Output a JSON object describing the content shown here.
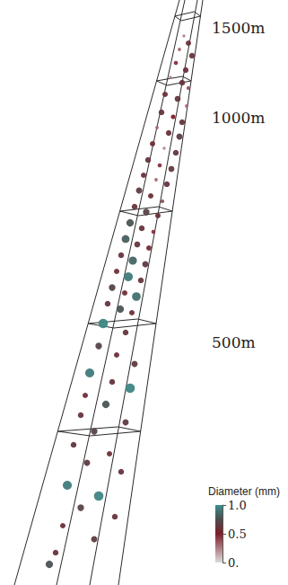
{
  "chart_data": {
    "type": "scatter",
    "xlim": [
      0,
      321
    ],
    "ylim": [
      0,
      651
    ],
    "tick_labels": false,
    "grid": false,
    "annotations": [
      "1500m",
      "1000m",
      "500m"
    ],
    "x": [
      205,
      210,
      200,
      214,
      196,
      207,
      190,
      203,
      210,
      184,
      198,
      208,
      180,
      193,
      203,
      175,
      188,
      200,
      170,
      183,
      196,
      165,
      178,
      191,
      160,
      174,
      186,
      155,
      168,
      181,
      150,
      163,
      176,
      145,
      158,
      171,
      140,
      153,
      166,
      135,
      148,
      162,
      130,
      143,
      157,
      125,
      139,
      152,
      120,
      134,
      147,
      115,
      140,
      110,
      130,
      150,
      100,
      125,
      145,
      95,
      118,
      90,
      140,
      105,
      82,
      122,
      97,
      135,
      75,
      110,
      90,
      128,
      70,
      105,
      62,
      55
    ],
    "y": [
      611,
      603,
      596,
      589,
      581,
      573,
      565,
      559,
      553,
      546,
      541,
      533,
      526,
      521,
      515,
      509,
      503,
      499,
      491,
      486,
      481,
      473,
      467,
      463,
      456,
      451,
      446,
      439,
      433,
      427,
      421,
      415,
      411,
      403,
      397,
      393,
      385,
      379,
      375,
      367,
      361,
      357,
      349,
      343,
      339,
      331,
      325,
      321,
      313,
      307,
      303,
      291,
      281,
      266,
      256,
      246,
      236,
      226,
      219,
      211,
      201,
      189,
      181,
      171,
      156,
      146,
      136,
      126,
      111,
      99,
      86,
      76,
      66,
      51,
      36,
      23
    ],
    "diameter": [
      0.15,
      0.45,
      0.2,
      0.5,
      0.3,
      0.48,
      0.15,
      0.5,
      0.25,
      0.45,
      0.52,
      0.2,
      0.5,
      0.35,
      0.5,
      0.2,
      0.48,
      0.55,
      0.45,
      0.15,
      0.5,
      0.5,
      0.3,
      0.52,
      0.45,
      0.2,
      0.5,
      0.55,
      0.45,
      0.25,
      0.5,
      0.6,
      0.45,
      0.7,
      0.5,
      0.3,
      0.75,
      0.52,
      0.45,
      0.5,
      0.8,
      0.55,
      0.45,
      0.9,
      0.5,
      0.6,
      0.45,
      0.85,
      0.5,
      0.7,
      0.45,
      0.95,
      0.5,
      0.6,
      0.45,
      0.55,
      0.9,
      0.5,
      0.95,
      0.45,
      0.7,
      0.5,
      0.55,
      0.6,
      0.5,
      0.45,
      0.55,
      0.5,
      0.9,
      0.95,
      0.6,
      0.5,
      0.45,
      0.55,
      0.5,
      0.7
    ],
    "colorbar": {
      "title": "Diameter (mm)",
      "range": [
        0,
        1
      ],
      "ticks": [
        {
          "value": 1,
          "label": "1.0"
        },
        0.5,
        {
          "value": 0,
          "label": "0."
        }
      ]
    }
  }
}
